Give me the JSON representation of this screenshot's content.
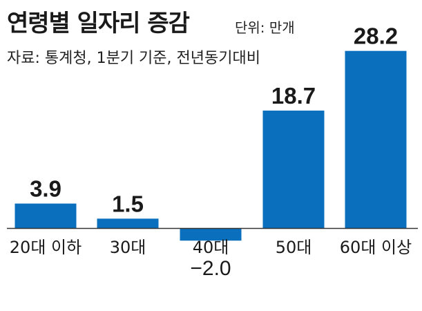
{
  "chart_data": {
    "type": "bar",
    "title": "연령별 일자리 증감",
    "unit": "단위: 만개",
    "source": "자료: 통계청, 1분기 기준, 전년동기대비",
    "categories": [
      "20대 이하",
      "30대",
      "40대",
      "50대",
      "60대 이상"
    ],
    "values": [
      3.9,
      1.5,
      -2.0,
      18.7,
      28.2
    ],
    "value_labels": [
      "3.9",
      "1.5",
      "−2.0",
      "18.7",
      "28.2"
    ],
    "ylim": [
      -2.0,
      28.2
    ],
    "bar_color": "#0a6fbd",
    "axis_color": "#333333"
  }
}
